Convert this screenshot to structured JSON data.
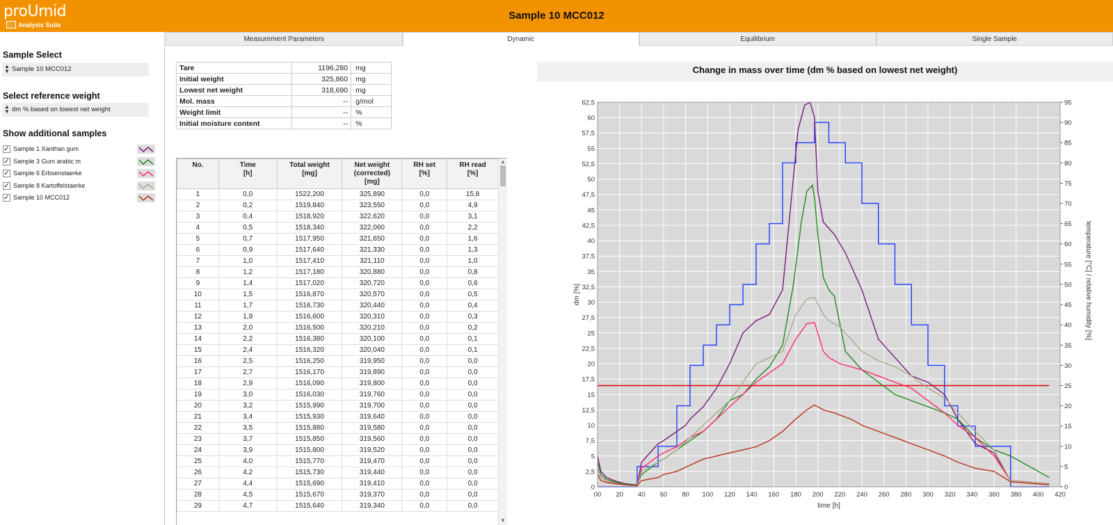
{
  "app": {
    "logo_name": "proUmid",
    "logo_subtitle": "Analysis Suite",
    "window_title": "Sample 10 MCC012",
    "brand_color": "#f39200"
  },
  "sidebar": {
    "sample_select_heading": "Sample Select",
    "sample_select_value": "Sample 10 MCC012",
    "reference_heading": "Select reference weight",
    "reference_value": "dm % based on lowest net weight",
    "additional_heading": "Show additional samples",
    "samples": [
      {
        "label": "Sample 1 Xanthan gum",
        "checked": true,
        "color": "#7a1a7a"
      },
      {
        "label": "Sample 3 Gum arabic m",
        "checked": true,
        "color": "#1e8a1e"
      },
      {
        "label": "Sample 6 Erbsenstaerke",
        "checked": true,
        "color": "#ff2a6d"
      },
      {
        "label": "Sample 8 Kartoffelstaerke",
        "checked": true,
        "color": "#a9a98a"
      },
      {
        "label": "Sample 10 MCC012",
        "checked": true,
        "color": "#b8321a"
      }
    ]
  },
  "tabs": [
    {
      "label": "Measurement Parameters",
      "active": false
    },
    {
      "label": "Dynamic",
      "active": true
    },
    {
      "label": "Equilibrium",
      "active": false
    },
    {
      "label": "Single Sample",
      "active": false
    }
  ],
  "parameters": [
    {
      "label": "Tare",
      "value": "1196,280",
      "unit": "mg"
    },
    {
      "label": "Initial weight",
      "value": "325,860",
      "unit": "mg"
    },
    {
      "label": "Lowest net weight",
      "value": "318,690",
      "unit": "mg"
    },
    {
      "label": "Mol. mass",
      "value": "--",
      "unit": "g/mol"
    },
    {
      "label": "Weight limit",
      "value": "--",
      "unit": "%"
    },
    {
      "label": "Initial moisture content",
      "value": "--",
      "unit": "%"
    }
  ],
  "table": {
    "headers": [
      "No.",
      "Time\n[h]",
      "Total weight\n[mg]",
      "Net weight\n(corrected)\n[mg]",
      "RH set\n[%]",
      "RH read\n[%]"
    ],
    "rows": [
      [
        "1",
        "0,0",
        "1522,200",
        "325,890",
        "0,0",
        "15,8"
      ],
      [
        "2",
        "0,2",
        "1519,840",
        "323,550",
        "0,0",
        "4,9"
      ],
      [
        "3",
        "0,4",
        "1518,920",
        "322,620",
        "0,0",
        "3,1"
      ],
      [
        "4",
        "0,5",
        "1518,340",
        "322,060",
        "0,0",
        "2,2"
      ],
      [
        "5",
        "0,7",
        "1517,950",
        "321,650",
        "0,0",
        "1,6"
      ],
      [
        "6",
        "0,9",
        "1517,640",
        "321,330",
        "0,0",
        "1,3"
      ],
      [
        "7",
        "1,0",
        "1517,410",
        "321,110",
        "0,0",
        "1,0"
      ],
      [
        "8",
        "1,2",
        "1517,180",
        "320,880",
        "0,0",
        "0,8"
      ],
      [
        "9",
        "1,4",
        "1517,020",
        "320,720",
        "0,0",
        "0,6"
      ],
      [
        "10",
        "1,5",
        "1516,870",
        "320,570",
        "0,0",
        "0,5"
      ],
      [
        "11",
        "1,7",
        "1516,730",
        "320,440",
        "0,0",
        "0,4"
      ],
      [
        "12",
        "1,9",
        "1516,600",
        "320,310",
        "0,0",
        "0,3"
      ],
      [
        "13",
        "2,0",
        "1516,500",
        "320,210",
        "0,0",
        "0,2"
      ],
      [
        "14",
        "2,2",
        "1516,380",
        "320,100",
        "0,0",
        "0,1"
      ],
      [
        "15",
        "2,4",
        "1516,320",
        "320,040",
        "0,0",
        "0,1"
      ],
      [
        "16",
        "2,5",
        "1516,250",
        "319,950",
        "0,0",
        "0,0"
      ],
      [
        "17",
        "2,7",
        "1516,170",
        "319,890",
        "0,0",
        "0,0"
      ],
      [
        "18",
        "2,9",
        "1516,090",
        "319,800",
        "0,0",
        "0,0"
      ],
      [
        "19",
        "3,0",
        "1516,030",
        "319,760",
        "0,0",
        "0,0"
      ],
      [
        "20",
        "3,2",
        "1515,990",
        "319,700",
        "0,0",
        "0,0"
      ],
      [
        "21",
        "3,4",
        "1515,930",
        "319,640",
        "0,0",
        "0,0"
      ],
      [
        "22",
        "3,5",
        "1515,880",
        "319,580",
        "0,0",
        "0,0"
      ],
      [
        "23",
        "3,7",
        "1515,850",
        "319,560",
        "0,0",
        "0,0"
      ],
      [
        "24",
        "3,9",
        "1515,800",
        "319,520",
        "0,0",
        "0,0"
      ],
      [
        "25",
        "4,0",
        "1515,770",
        "319,470",
        "0,0",
        "0,0"
      ],
      [
        "26",
        "4,2",
        "1515,730",
        "319,440",
        "0,0",
        "0,0"
      ],
      [
        "27",
        "4,4",
        "1515,690",
        "319,410",
        "0,0",
        "0,0"
      ],
      [
        "28",
        "4,5",
        "1515,670",
        "319,370",
        "0,0",
        "0,0"
      ],
      [
        "29",
        "4,7",
        "1515,640",
        "319,340",
        "0,0",
        "0,0"
      ]
    ]
  },
  "chart_data": {
    "type": "line",
    "title": "Change in mass over time (dm % based on lowest net weight)",
    "xlabel": "time [h]",
    "ylabel": "dm [%]",
    "y2label": "temperature [°C] / relative humidity [%]",
    "xlim": [
      0,
      420
    ],
    "ylim": [
      0,
      62.5
    ],
    "y2lim": [
      0,
      95
    ],
    "xticks": [
      "00",
      "20",
      "40",
      "60",
      "80",
      "100",
      "120",
      "140",
      "160",
      "180",
      "200",
      "220",
      "240",
      "260",
      "280",
      "300",
      "320",
      "340",
      "360",
      "380",
      "400",
      "420"
    ],
    "yticks": [
      "0",
      "2,5",
      "5",
      "7,5",
      "10",
      "12,5",
      "15",
      "17,5",
      "20",
      "22,5",
      "25",
      "27,5",
      "30",
      "32,5",
      "35",
      "37,5",
      "40",
      "42,5",
      "45",
      "47,5",
      "50",
      "52,5",
      "55",
      "57,5",
      "60",
      "62,5"
    ],
    "y2ticks": [
      "0",
      "5",
      "10",
      "15",
      "20",
      "25",
      "30",
      "35",
      "40",
      "45",
      "50",
      "55",
      "60",
      "65",
      "70",
      "75",
      "80",
      "85",
      "90",
      "95"
    ],
    "grid": true,
    "background": "#d9d9d9",
    "series": [
      {
        "axis": "y2",
        "color": "#1f3cff",
        "x": [
          0,
          36,
          36,
          55,
          55,
          72,
          72,
          84,
          84,
          96,
          96,
          108,
          108,
          120,
          120,
          132,
          132,
          144,
          144,
          156,
          156,
          168,
          168,
          180,
          180,
          197,
          197,
          210,
          210,
          225,
          225,
          240,
          240,
          255,
          255,
          270,
          270,
          285,
          285,
          300,
          300,
          315,
          315,
          327,
          327,
          343,
          343,
          375,
          375,
          410
        ],
        "values": [
          0,
          0,
          5,
          5,
          10,
          10,
          20,
          20,
          30,
          30,
          35,
          35,
          40,
          40,
          45,
          45,
          50,
          50,
          60,
          60,
          65,
          65,
          80,
          80,
          85,
          85,
          90,
          90,
          85,
          85,
          80,
          80,
          70,
          70,
          60,
          60,
          50,
          50,
          40,
          40,
          30,
          30,
          20,
          20,
          15,
          15,
          10,
          10,
          0,
          0
        ]
      },
      {
        "axis": "y2",
        "color": "#e00000",
        "x": [
          0,
          410
        ],
        "values": [
          25,
          25
        ]
      },
      {
        "axis": "y",
        "color": "#7a1a7a",
        "x": [
          0,
          3,
          8,
          15,
          25,
          36,
          40,
          55,
          60,
          72,
          80,
          84,
          96,
          108,
          120,
          132,
          144,
          156,
          168,
          175,
          182,
          188,
          193,
          197,
          200,
          205,
          210,
          215,
          225,
          240,
          255,
          270,
          285,
          300,
          315,
          327,
          343,
          360,
          375,
          410
        ],
        "values": [
          5,
          2.5,
          1.5,
          1,
          0.5,
          0.3,
          4,
          7,
          7.5,
          9,
          10,
          11,
          13,
          16,
          20,
          25,
          27,
          28,
          32,
          45,
          58,
          62,
          62.5,
          60,
          48,
          43,
          42,
          41,
          38,
          32,
          24,
          21,
          18,
          17,
          15,
          11,
          7,
          5.5,
          1,
          0.5
        ]
      },
      {
        "axis": "y",
        "color": "#1e8a1e",
        "x": [
          0,
          3,
          8,
          15,
          25,
          36,
          40,
          55,
          60,
          72,
          84,
          96,
          108,
          120,
          132,
          144,
          156,
          168,
          178,
          185,
          190,
          195,
          197,
          200,
          205,
          210,
          215,
          225,
          240,
          255,
          270,
          285,
          300,
          315,
          327,
          343,
          360,
          375,
          410
        ],
        "values": [
          4,
          2,
          1.2,
          0.8,
          0.4,
          0.3,
          2,
          4,
          4.5,
          6,
          7.5,
          9,
          11,
          14,
          15,
          17.5,
          19.5,
          23,
          33,
          43,
          48,
          49,
          47,
          41,
          34,
          32,
          31,
          22,
          19,
          17,
          15,
          14,
          13,
          12,
          11,
          8,
          6,
          5,
          1.5
        ]
      },
      {
        "axis": "y",
        "color": "#ff2a6d",
        "x": [
          0,
          3,
          8,
          15,
          25,
          36,
          40,
          55,
          60,
          72,
          84,
          96,
          108,
          120,
          132,
          144,
          156,
          168,
          180,
          190,
          197,
          205,
          210,
          220,
          240,
          255,
          270,
          285,
          300,
          315,
          327,
          343,
          360,
          375,
          410
        ],
        "values": [
          3,
          1.5,
          0.9,
          0.6,
          0.3,
          0.2,
          3,
          5,
          5.5,
          6.5,
          8,
          9,
          11,
          13,
          15,
          17,
          18.5,
          20,
          24,
          26.5,
          26.7,
          22,
          21,
          20,
          19,
          18,
          17,
          16,
          14,
          12,
          10,
          8,
          5,
          1,
          0.5
        ]
      },
      {
        "axis": "y",
        "color": "#a9a98a",
        "x": [
          0,
          3,
          8,
          15,
          25,
          36,
          40,
          55,
          60,
          72,
          84,
          96,
          108,
          120,
          132,
          144,
          156,
          168,
          180,
          190,
          197,
          205,
          210,
          220,
          240,
          255,
          270,
          285,
          300,
          315,
          327,
          343,
          360,
          375,
          410
        ],
        "values": [
          3,
          1.5,
          0.9,
          0.6,
          0.3,
          0.2,
          2.5,
          4,
          4.5,
          6,
          8,
          10,
          12,
          14,
          17,
          20,
          21,
          22,
          28,
          30.5,
          30.8,
          28,
          27,
          26,
          22,
          20.5,
          19.5,
          18,
          16,
          14.5,
          12,
          9,
          6,
          1,
          0.5
        ]
      },
      {
        "axis": "y",
        "color": "#b8321a",
        "x": [
          0,
          3,
          8,
          15,
          25,
          36,
          40,
          55,
          60,
          72,
          84,
          96,
          108,
          120,
          132,
          144,
          156,
          168,
          180,
          190,
          197,
          205,
          215,
          230,
          240,
          255,
          270,
          285,
          300,
          315,
          327,
          343,
          360,
          375,
          410
        ],
        "values": [
          2,
          1,
          0.7,
          0.5,
          0.3,
          0.2,
          1,
          1.5,
          2,
          2.5,
          3.5,
          4.5,
          5,
          5.5,
          6,
          6.5,
          7.5,
          9,
          11,
          12.5,
          13.3,
          12.5,
          12,
          11,
          10,
          9,
          8,
          7,
          6,
          5,
          4,
          3,
          2.5,
          0.8,
          0.3
        ]
      }
    ]
  }
}
